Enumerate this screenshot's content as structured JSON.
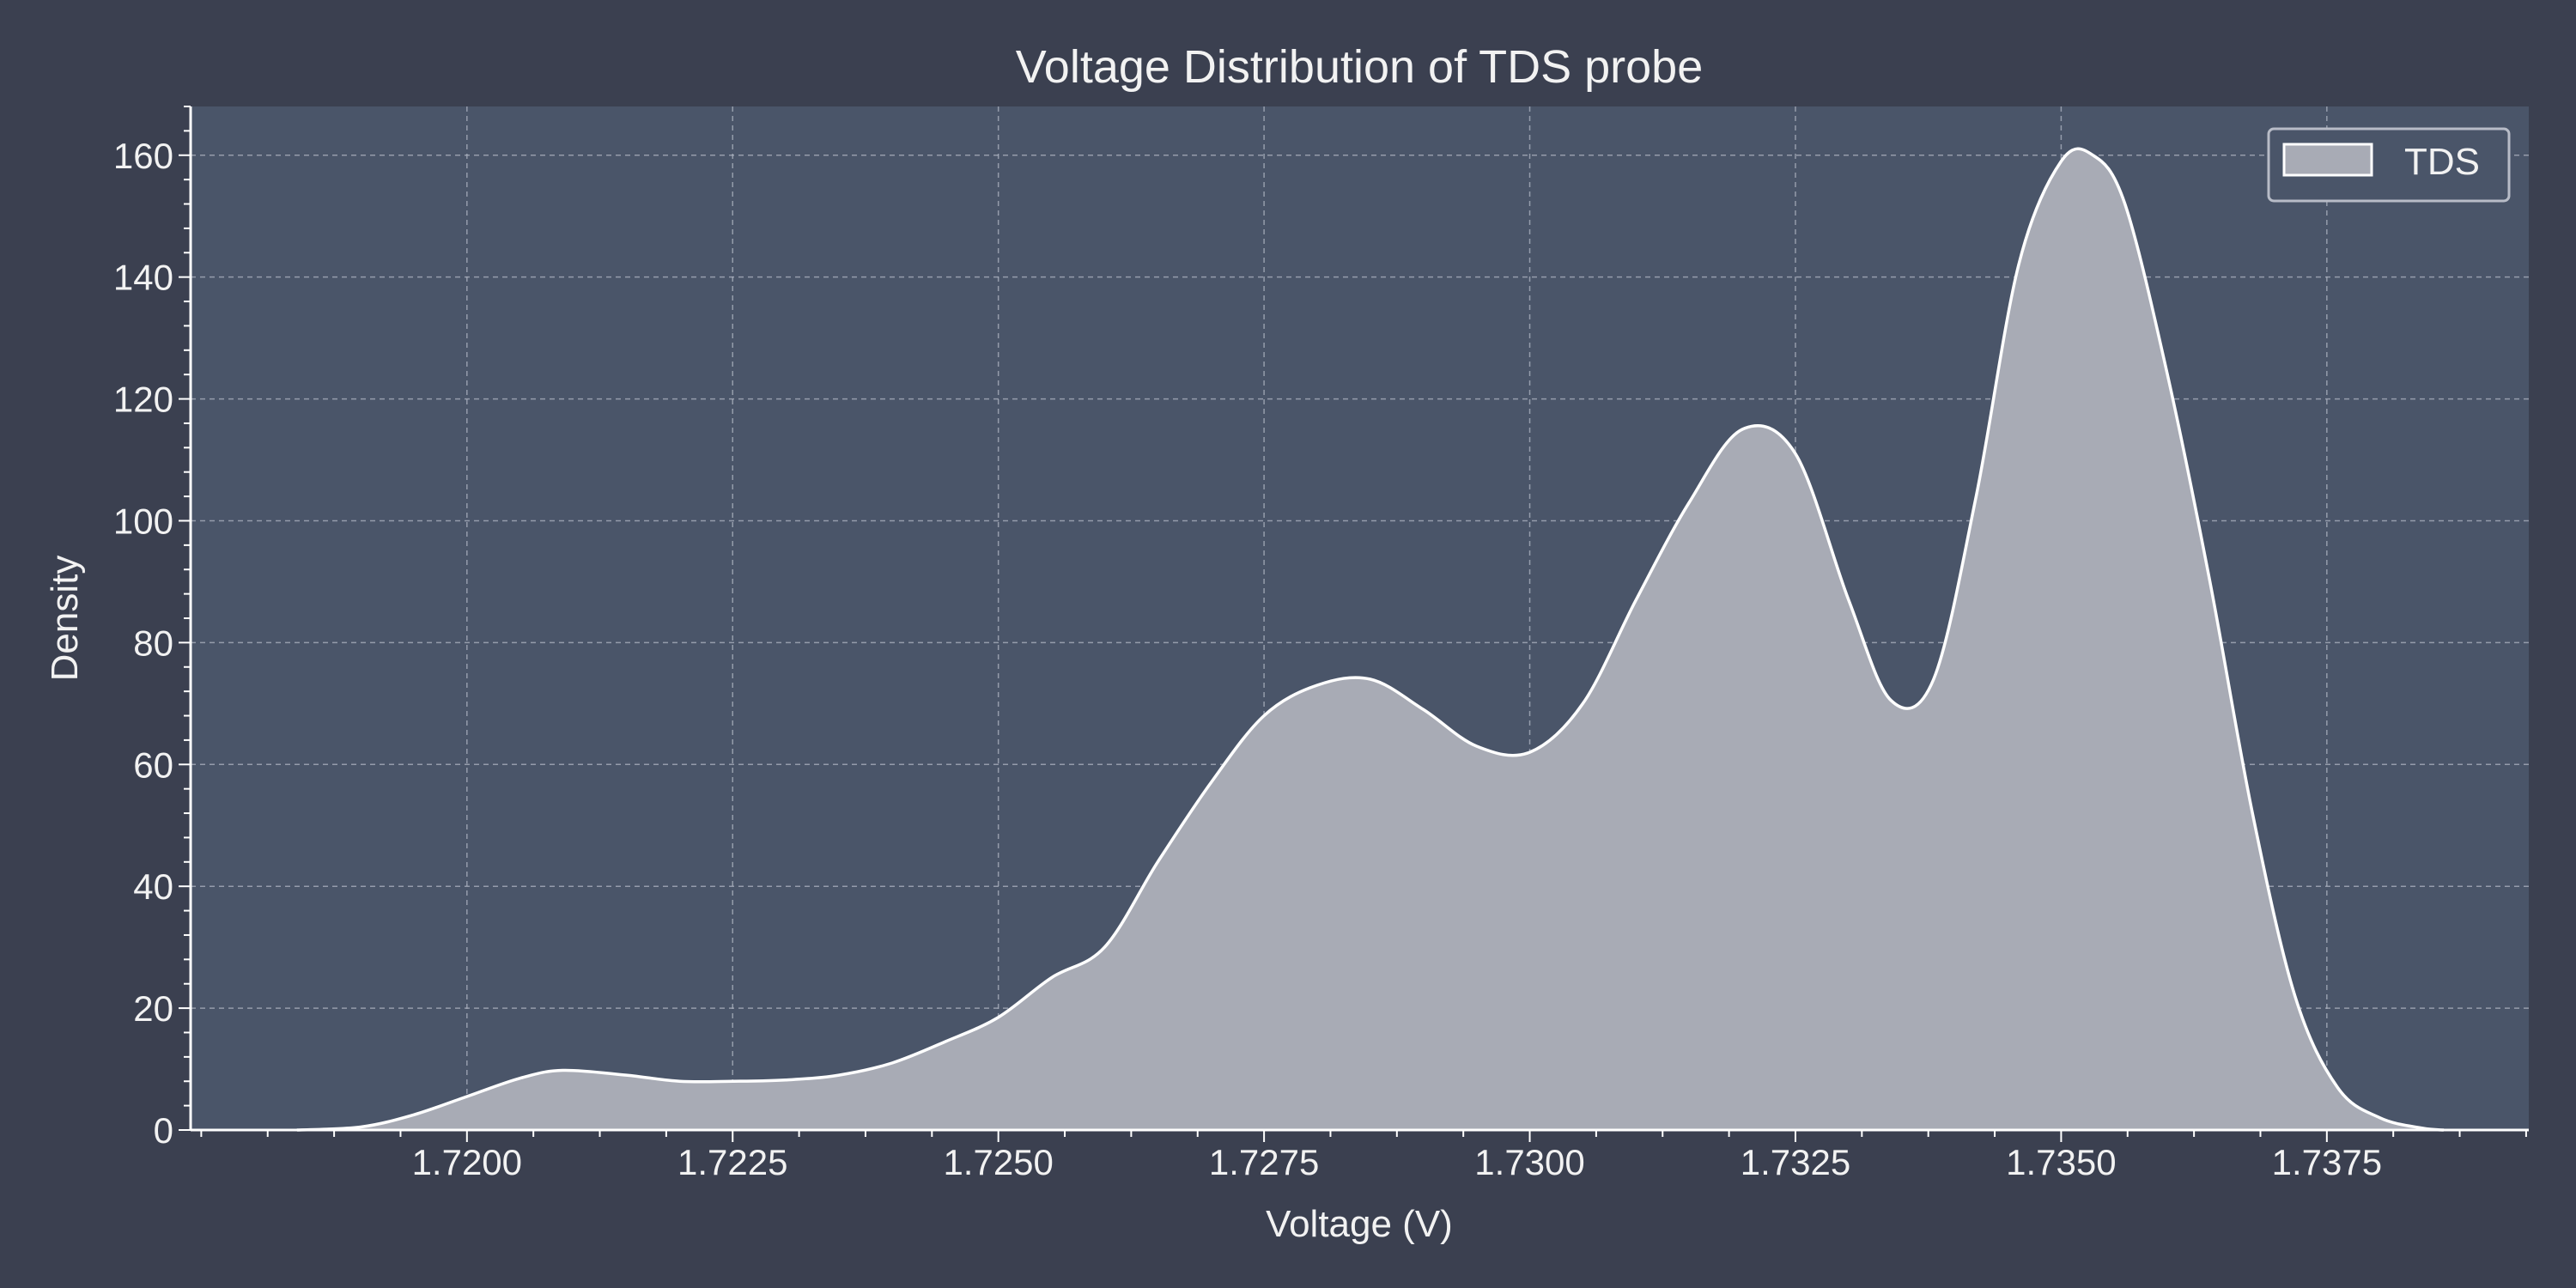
{
  "colors": {
    "figure_bg": "#3b4050",
    "plot_bg": "#4a5569",
    "grid": "#aeb4c2",
    "axis": "#ffffff",
    "text": "#f2f2f2",
    "fill": "#a8abb5",
    "line": "#ffffff",
    "legend_border": "#b8bcc7"
  },
  "chart_data": {
    "type": "area",
    "title": "Voltage Distribution of TDS probe",
    "xlabel": "Voltage (V)",
    "ylabel": "Density",
    "xlim": [
      1.7174,
      1.7394
    ],
    "ylim": [
      0,
      168
    ],
    "x_ticks": [
      1.72,
      1.7225,
      1.725,
      1.7275,
      1.73,
      1.7325,
      1.735,
      1.7375
    ],
    "x_tick_labels": [
      "1.7200",
      "1.7225",
      "1.7250",
      "1.7275",
      "1.7300",
      "1.7325",
      "1.7350",
      "1.7375"
    ],
    "y_ticks": [
      0,
      20,
      40,
      60,
      80,
      100,
      120,
      140,
      160
    ],
    "y_tick_labels": [
      "0",
      "20",
      "40",
      "60",
      "80",
      "100",
      "120",
      "140",
      "160"
    ],
    "grid": true,
    "legend": {
      "position": "top-right",
      "entries": [
        "TDS"
      ]
    },
    "series": [
      {
        "name": "TDS",
        "x": [
          1.7184,
          1.719,
          1.7195,
          1.72,
          1.7205,
          1.7209,
          1.7215,
          1.722,
          1.7225,
          1.723,
          1.7235,
          1.724,
          1.7245,
          1.725,
          1.7255,
          1.726,
          1.7265,
          1.727,
          1.7275,
          1.728,
          1.7285,
          1.729,
          1.7295,
          1.73,
          1.7305,
          1.731,
          1.7315,
          1.732,
          1.7325,
          1.733,
          1.7334,
          1.7338,
          1.7342,
          1.7346,
          1.735,
          1.7353,
          1.7356,
          1.736,
          1.7364,
          1.7368,
          1.7372,
          1.7376,
          1.738,
          1.7384,
          1.7386
        ],
        "y": [
          0,
          0.5,
          2.5,
          5.5,
          8.5,
          9.8,
          9,
          8,
          8,
          8.2,
          9,
          11,
          14.5,
          18.5,
          25,
          30,
          44,
          57,
          68,
          73,
          74,
          69,
          63,
          62,
          70,
          87,
          103,
          115,
          111,
          87,
          70.5,
          74,
          104,
          142,
          159,
          160,
          152,
          124,
          90,
          52,
          22,
          7,
          2,
          0.3,
          0
        ]
      }
    ]
  }
}
